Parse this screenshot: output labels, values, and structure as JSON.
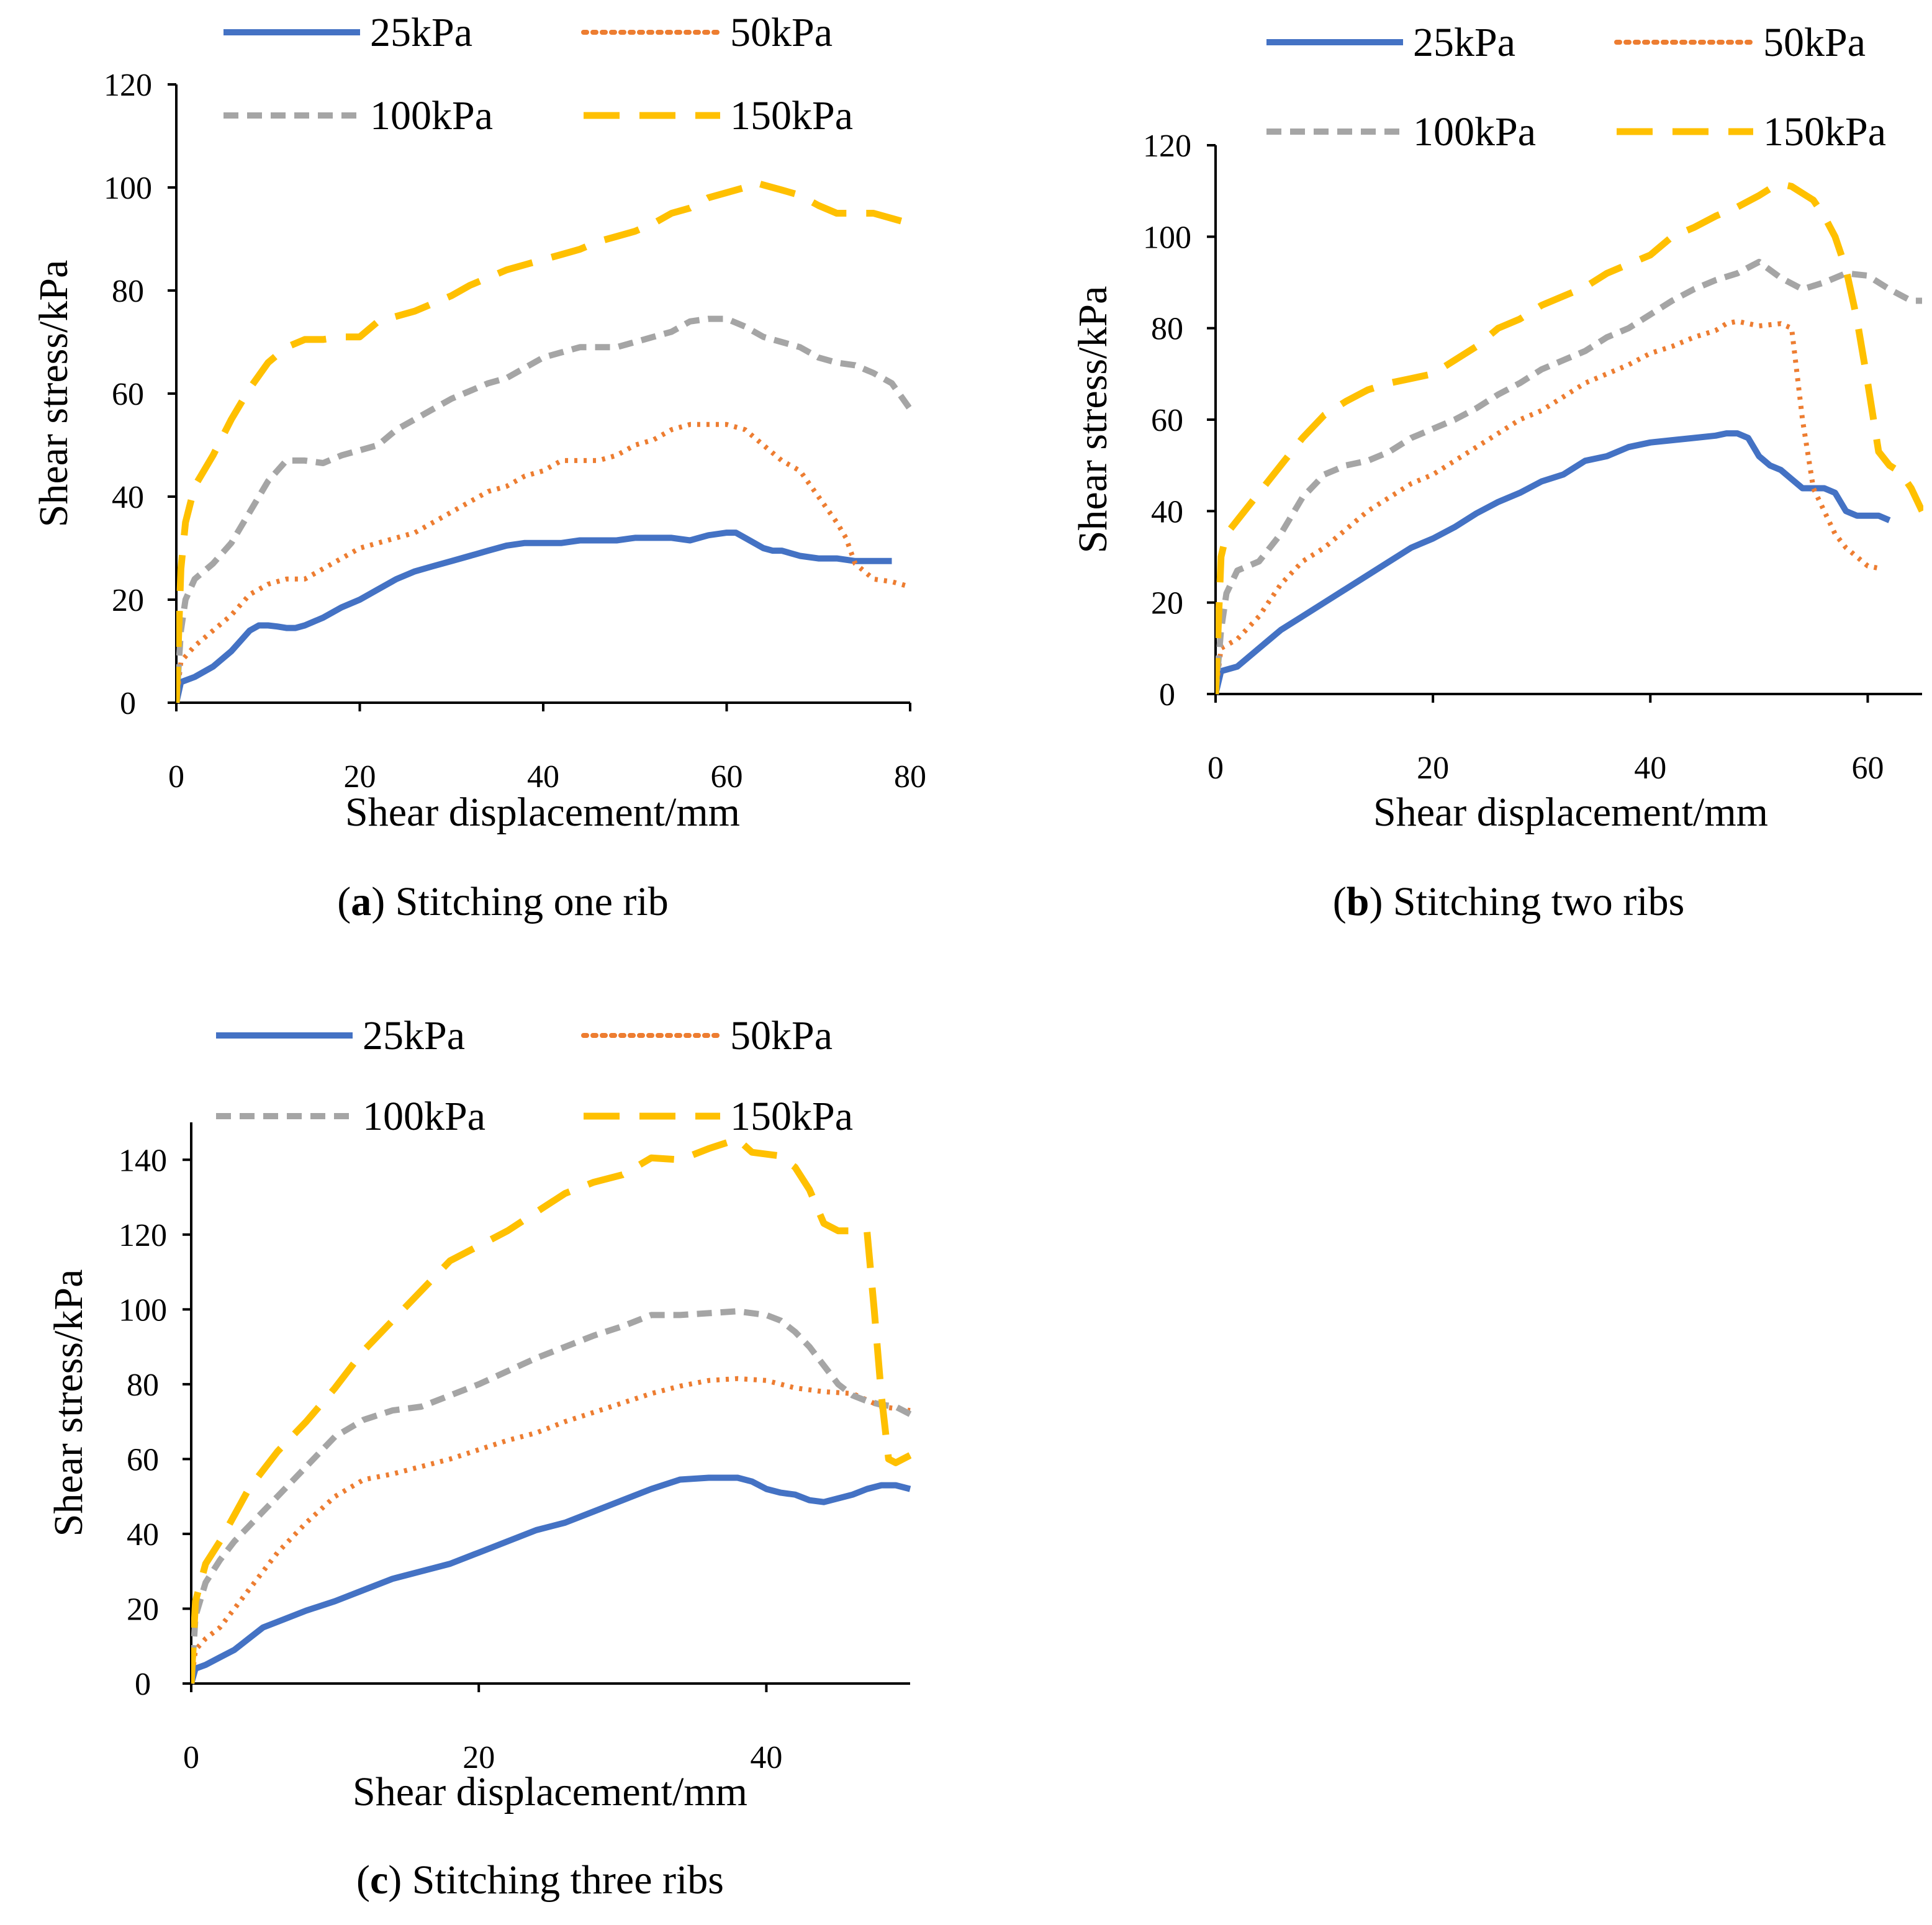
{
  "colors": {
    "25kPa": "#4472C4",
    "50kPa": "#ED7D31",
    "100kPa": "#A5A5A5",
    "150kPa": "#FFC000"
  },
  "chart_data": [
    {
      "type": "line",
      "caption_letter": "a",
      "caption_text": "Stitching one rib",
      "xlabel": "Shear displacement/mm",
      "ylabel": "Shear stress/kPa",
      "xlim": [
        0,
        80
      ],
      "ylim": [
        0,
        120
      ],
      "xticks": [
        0,
        20,
        40,
        60,
        80
      ],
      "yticks": [
        0,
        20,
        40,
        60,
        80,
        100,
        120
      ],
      "legend": [
        "25kPa",
        "50kPa",
        "100kPa",
        "150kPa"
      ],
      "series": [
        {
          "name": "25kPa",
          "style": "solid",
          "x": [
            0,
            0.5,
            2,
            4,
            6,
            8,
            9,
            10,
            11,
            12,
            13,
            14,
            16,
            18,
            20,
            22,
            24,
            26,
            28,
            30,
            32,
            34,
            36,
            38,
            40,
            42,
            44,
            46,
            48,
            50,
            52,
            54,
            56,
            58,
            60,
            61,
            62,
            64,
            65,
            66,
            68,
            70,
            72,
            74,
            76,
            78
          ],
          "y": [
            0,
            4,
            5,
            7,
            10,
            14,
            15,
            15,
            14.8,
            14.5,
            14.5,
            15,
            16.5,
            18.5,
            20,
            22,
            24,
            25.5,
            26.5,
            27.5,
            28.5,
            29.5,
            30.5,
            31,
            31,
            31,
            31.5,
            31.5,
            31.5,
            32,
            32,
            32,
            31.5,
            32.5,
            33,
            33,
            32,
            30,
            29.5,
            29.5,
            28.5,
            28,
            28,
            27.5,
            27.5,
            27.5
          ]
        },
        {
          "name": "50kPa",
          "style": "dotted",
          "x": [
            0,
            0.5,
            2,
            4,
            6,
            8,
            10,
            12,
            14,
            16,
            18,
            20,
            22,
            24,
            26,
            28,
            30,
            32,
            34,
            36,
            38,
            40,
            42,
            44,
            46,
            48,
            50,
            52,
            54,
            56,
            58,
            60,
            62,
            64,
            66,
            68,
            70,
            72,
            73,
            74,
            76,
            78,
            80
          ],
          "y": [
            0,
            8,
            11,
            14,
            17,
            21,
            23,
            24,
            24,
            26,
            28,
            30,
            31,
            32,
            33,
            35,
            37,
            39,
            41,
            42,
            44,
            45,
            47,
            47,
            47,
            48,
            50,
            51,
            53,
            54,
            54,
            54,
            53,
            50,
            47,
            45,
            40,
            35,
            32,
            27,
            24,
            23.5,
            22.5
          ]
        },
        {
          "name": "100kPa",
          "style": "dashed",
          "x": [
            0,
            0.5,
            1,
            2,
            4,
            6,
            8,
            10,
            12,
            14,
            16,
            18,
            20,
            22,
            24,
            26,
            28,
            30,
            32,
            34,
            36,
            38,
            40,
            42,
            44,
            46,
            48,
            50,
            52,
            54,
            56,
            58,
            60,
            62,
            64,
            66,
            68,
            70,
            72,
            74,
            76,
            78,
            80
          ],
          "y": [
            0,
            14,
            20,
            24,
            27,
            31,
            37,
            43,
            47,
            47,
            46.5,
            48,
            49,
            50,
            53,
            55,
            57,
            59,
            60.5,
            62,
            63,
            65,
            67,
            68,
            69,
            69,
            69,
            70,
            71,
            72,
            74,
            74.5,
            74.5,
            73,
            71,
            70,
            69,
            67,
            66,
            65.5,
            64,
            62,
            57
          ]
        },
        {
          "name": "150kPa",
          "style": "longdash",
          "x": [
            0,
            0.5,
            1,
            2,
            4,
            6,
            8,
            10,
            12,
            14,
            16,
            18,
            20,
            22,
            24,
            26,
            28,
            30,
            32,
            34,
            36,
            38,
            40,
            42,
            44,
            46,
            48,
            50,
            52,
            54,
            56,
            58,
            60,
            62,
            63,
            64,
            66,
            68,
            70,
            72,
            74,
            76,
            78,
            80
          ],
          "y": [
            0,
            26,
            35,
            42,
            48,
            55,
            61,
            66,
            69,
            70.5,
            70.5,
            71,
            71,
            74,
            75,
            76,
            77.5,
            79,
            81,
            82.5,
            84,
            85,
            86,
            87,
            88,
            89.5,
            90.5,
            91.5,
            93,
            95,
            96,
            98,
            99,
            100,
            101,
            100.5,
            99.5,
            98.5,
            96.5,
            95,
            95,
            95,
            94,
            93
          ]
        }
      ]
    },
    {
      "type": "line",
      "caption_letter": "b",
      "caption_text": "Stitching two ribs",
      "xlabel": "Shear displacement/mm",
      "ylabel": "Shear stress/kPa",
      "xlim": [
        0,
        65
      ],
      "ylim": [
        0,
        120
      ],
      "xticks": [
        0,
        20,
        40,
        60
      ],
      "yticks": [
        0,
        20,
        40,
        60,
        80,
        100,
        120
      ],
      "legend": [
        "25kPa",
        "50kPa",
        "100kPa",
        "150kPa"
      ],
      "series": [
        {
          "name": "25kPa",
          "style": "solid",
          "x": [
            0,
            0.5,
            2,
            4,
            6,
            8,
            10,
            12,
            14,
            16,
            18,
            20,
            22,
            24,
            26,
            28,
            30,
            32,
            34,
            36,
            38,
            40,
            42,
            44,
            46,
            47,
            48,
            49,
            50,
            51,
            52,
            53,
            54,
            55,
            56,
            57,
            58,
            59,
            60,
            61,
            62
          ],
          "y": [
            0,
            5,
            6,
            10,
            14,
            17,
            20,
            23,
            26,
            29,
            32,
            34,
            36.5,
            39.5,
            42,
            44,
            46.5,
            48,
            51,
            52,
            54,
            55,
            55.5,
            56,
            56.5,
            57,
            57,
            56,
            52,
            50,
            49,
            47,
            45,
            45,
            45,
            44,
            40,
            39,
            39,
            39,
            38
          ]
        },
        {
          "name": "50kPa",
          "style": "dotted",
          "x": [
            0,
            0.5,
            2,
            4,
            6,
            8,
            10,
            12,
            14,
            16,
            18,
            20,
            22,
            24,
            26,
            28,
            30,
            32,
            34,
            36,
            38,
            40,
            42,
            44,
            46,
            47,
            48,
            50,
            52,
            53,
            54,
            55,
            56,
            57,
            58,
            59,
            60,
            61
          ],
          "y": [
            0,
            10,
            12,
            17,
            24,
            29,
            32,
            36,
            40,
            43,
            46,
            48,
            51,
            54,
            57,
            60,
            62,
            65,
            68,
            70,
            72,
            74.5,
            76,
            78,
            79.5,
            81,
            81.5,
            80.5,
            81,
            80,
            60,
            45,
            40,
            35,
            32,
            30,
            28,
            27.5
          ]
        },
        {
          "name": "100kPa",
          "style": "dashed",
          "x": [
            0,
            0.5,
            1,
            2,
            4,
            6,
            8,
            10,
            12,
            14,
            16,
            18,
            20,
            22,
            24,
            26,
            28,
            30,
            32,
            34,
            36,
            38,
            40,
            42,
            44,
            46,
            48,
            50,
            52,
            54,
            56,
            58,
            60,
            62,
            64,
            65
          ],
          "y": [
            0,
            14,
            22,
            27,
            29,
            35,
            43,
            48,
            50,
            51,
            53,
            56,
            58,
            60,
            62.5,
            65.5,
            68,
            71,
            73,
            75,
            78,
            80,
            83,
            86,
            88.5,
            90.5,
            92,
            94.5,
            91,
            88.5,
            90,
            92,
            91.5,
            88.5,
            86,
            86
          ]
        },
        {
          "name": "150kPa",
          "style": "longdash",
          "x": [
            0,
            0.5,
            1,
            2,
            4,
            6,
            8,
            10,
            12,
            14,
            16,
            18,
            20,
            22,
            24,
            26,
            28,
            30,
            32,
            34,
            36,
            38,
            40,
            42,
            44,
            46,
            48,
            50,
            51,
            52,
            53,
            54,
            55,
            56,
            57,
            58,
            59,
            60,
            61,
            62,
            63,
            64,
            65
          ],
          "y": [
            0,
            30,
            35,
            38,
            44,
            50,
            56,
            61,
            64,
            66.5,
            68,
            69,
            70,
            73,
            76,
            80,
            82,
            85,
            87,
            89,
            92,
            94,
            96,
            100,
            102,
            104.5,
            106.5,
            109,
            110.5,
            111.5,
            111,
            109.5,
            108,
            104.5,
            100,
            93,
            82,
            68,
            53,
            50,
            48.5,
            45,
            40
          ]
        }
      ]
    },
    {
      "type": "line",
      "caption_letter": "c",
      "caption_text": "Stitching three ribs",
      "xlabel": "Shear displacement/mm",
      "ylabel": "Shear stress/kPa",
      "xlim": [
        0,
        50
      ],
      "ylim": [
        0,
        150
      ],
      "xticks": [
        0,
        20,
        40
      ],
      "yticks": [
        0,
        20,
        40,
        60,
        80,
        100,
        120,
        140
      ],
      "legend": [
        "25kPa",
        "50kPa",
        "100kPa",
        "150kPa"
      ],
      "series": [
        {
          "name": "25kPa",
          "style": "solid",
          "x": [
            0,
            0.3,
            1,
            2,
            3,
            4,
            5,
            6,
            8,
            10,
            12,
            14,
            16,
            18,
            20,
            22,
            24,
            26,
            28,
            30,
            32,
            34,
            36,
            38,
            39,
            40,
            41,
            42,
            43,
            44,
            45,
            46,
            47,
            48,
            49,
            50
          ],
          "y": [
            0,
            4,
            5,
            7,
            9,
            12,
            15,
            16.5,
            19.5,
            22,
            25,
            28,
            30,
            32,
            35,
            38,
            41,
            43,
            46,
            49,
            52,
            54.5,
            55,
            55,
            54,
            52,
            51,
            50.5,
            49,
            48.5,
            49.5,
            50.5,
            52,
            53,
            53,
            52
          ]
        },
        {
          "name": "50kPa",
          "style": "dotted",
          "x": [
            0,
            0.3,
            1,
            2,
            3,
            4,
            5,
            6,
            8,
            10,
            12,
            14,
            16,
            18,
            20,
            22,
            24,
            26,
            28,
            30,
            32,
            34,
            36,
            38,
            40,
            42,
            44,
            46,
            48,
            50
          ],
          "y": [
            0,
            9,
            12,
            15,
            20,
            25,
            30,
            35,
            43,
            50,
            54.5,
            56,
            58,
            60,
            62.5,
            65,
            67,
            70,
            72.5,
            75,
            77.5,
            79.5,
            81,
            81.5,
            81,
            79,
            78,
            77.5,
            74,
            73
          ]
        },
        {
          "name": "100kPa",
          "style": "dashed",
          "x": [
            0,
            0.3,
            1,
            2,
            3,
            4,
            6,
            8,
            10,
            12,
            14,
            16,
            18,
            20,
            22,
            24,
            26,
            28,
            30,
            32,
            34,
            36,
            38,
            40,
            41,
            42,
            43,
            44,
            45,
            46,
            47,
            48,
            49,
            50
          ],
          "y": [
            0,
            18,
            27,
            33,
            38,
            42,
            50,
            58,
            66,
            70.5,
            73,
            74,
            77,
            80,
            83.5,
            87,
            90,
            93,
            95.5,
            98.5,
            98.5,
            99,
            99.5,
            98.5,
            97,
            94,
            90,
            85,
            80,
            77,
            75.5,
            74.5,
            74,
            72
          ]
        },
        {
          "name": "150kPa",
          "style": "longdash",
          "x": [
            0,
            0.3,
            1,
            2,
            3,
            4,
            6,
            8,
            10,
            12,
            14,
            16,
            18,
            20,
            22,
            24,
            26,
            28,
            30,
            32,
            34,
            36,
            38,
            39,
            40,
            41,
            42,
            43,
            44,
            45,
            46,
            47,
            47.5,
            48,
            48.5,
            49,
            50
          ],
          "y": [
            0,
            22,
            32,
            38,
            45,
            52,
            62,
            70,
            79,
            89,
            97,
            105,
            113,
            117,
            121,
            126,
            131,
            134,
            136,
            140.5,
            140,
            143,
            145.5,
            142,
            141.5,
            141,
            138,
            132,
            123,
            121,
            121,
            121,
            100,
            77,
            60,
            59,
            61
          ]
        }
      ]
    }
  ]
}
